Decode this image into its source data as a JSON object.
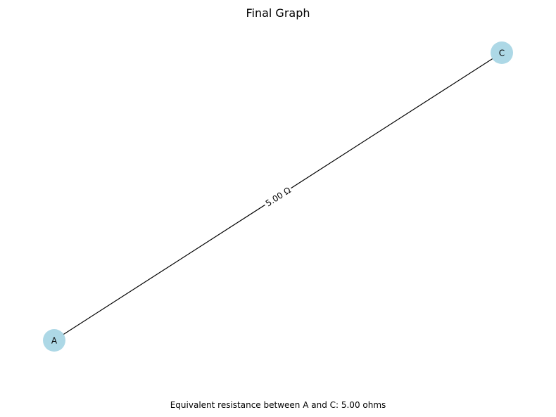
{
  "title": "Final Graph",
  "nodes": [
    {
      "id": "A",
      "label": "A",
      "color": "#add8e6"
    },
    {
      "id": "C",
      "label": "C",
      "color": "#add8e6"
    }
  ],
  "edges": [
    {
      "from": "A",
      "to": "C",
      "label": "5.00 Ω"
    }
  ],
  "caption": "Equivalent resistance between A and C: 5.00 ohms",
  "colors": {
    "node_fill": "#add8e6",
    "edge_stroke": "#000000",
    "label_bg": "#ffffff"
  }
}
